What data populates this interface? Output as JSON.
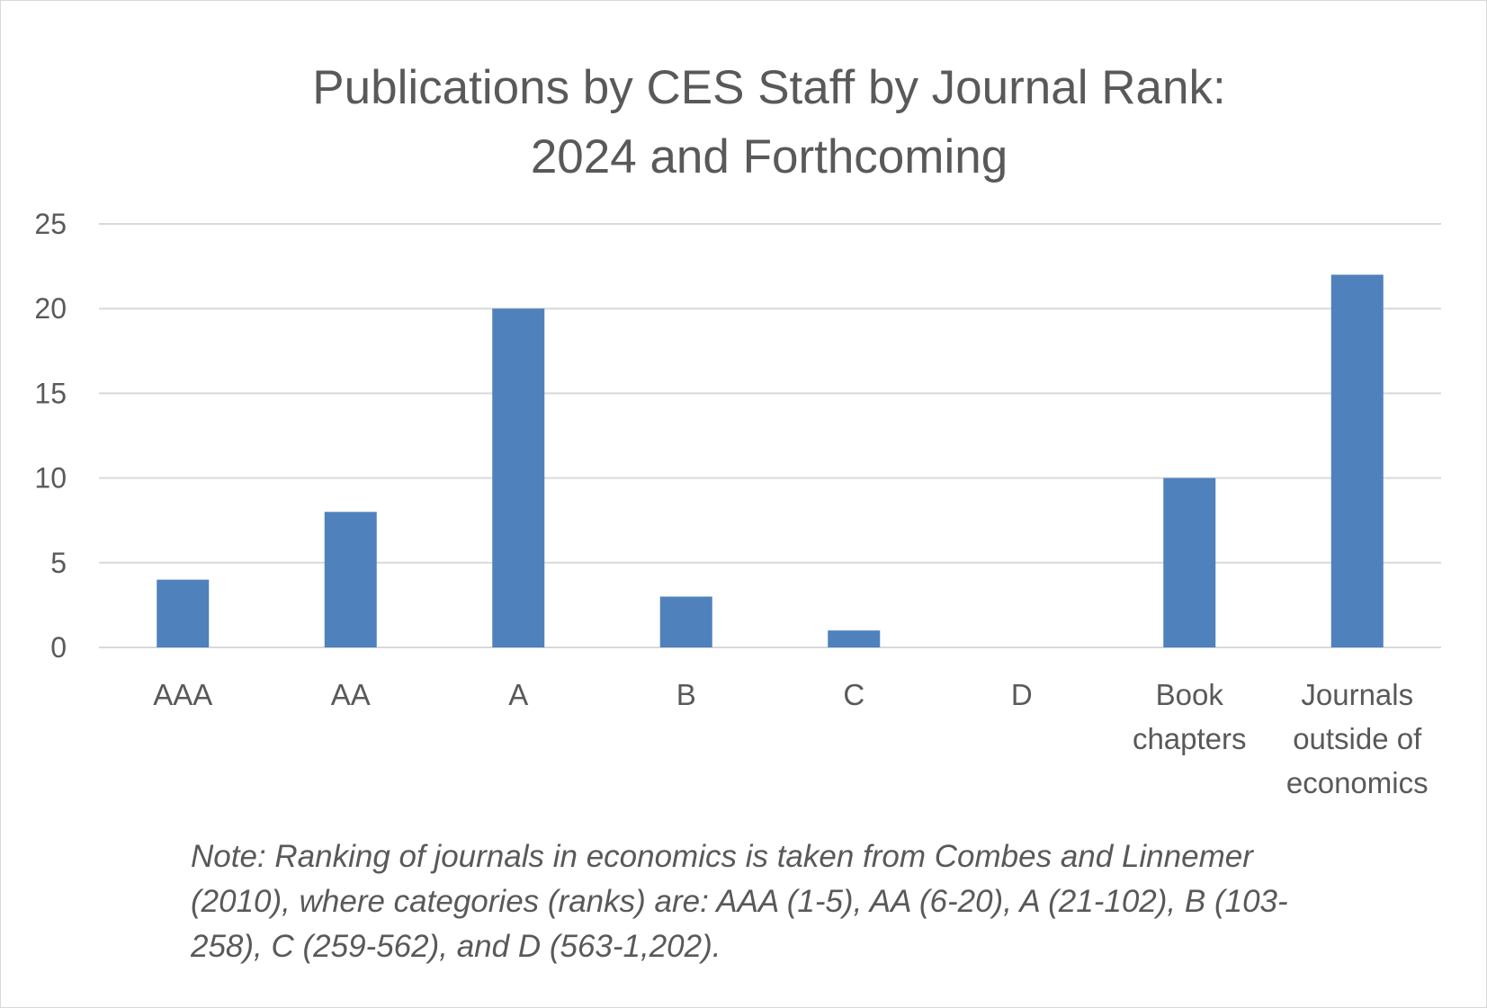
{
  "chart_data": {
    "type": "bar",
    "title_lines": [
      "Publications by CES Staff by Journal Rank:",
      "2024 and Forthcoming"
    ],
    "categories": [
      [
        "AAA"
      ],
      [
        "AA"
      ],
      [
        "A"
      ],
      [
        "B"
      ],
      [
        "C"
      ],
      [
        "D"
      ],
      [
        "Book",
        "chapters"
      ],
      [
        "Journals",
        "outside of",
        "economics"
      ]
    ],
    "values": [
      4,
      8,
      20,
      3,
      1,
      0,
      10,
      22
    ],
    "ylim": [
      0,
      25
    ],
    "yticks": [
      0,
      5,
      10,
      15,
      20,
      25
    ],
    "grid": true,
    "colors": {
      "bar": "#4f81bd",
      "grid": "#d9d9d9",
      "text": "#595959"
    },
    "note": "Note: Ranking of journals in economics is taken from Combes and Linnemer (2010), where categories (ranks) are: AAA (1-5), AA (6-20), A (21-102), B (103-258), C (259-562), and D (563-1,202)."
  }
}
